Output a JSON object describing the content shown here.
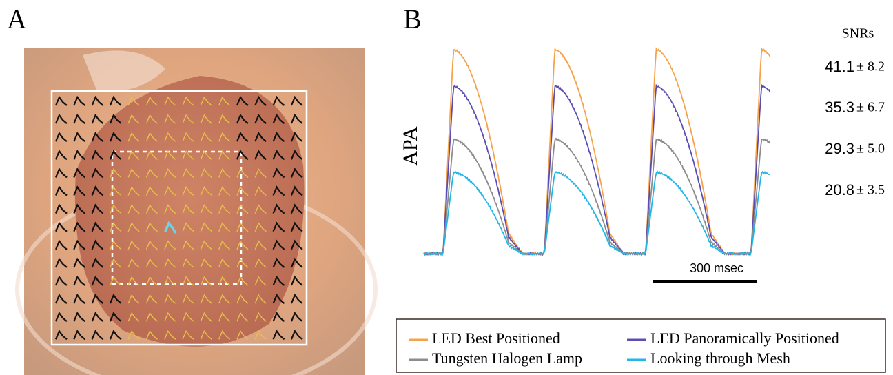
{
  "panel_a": {
    "label": "A"
  },
  "panel_b": {
    "label": "B",
    "y_label": "APA",
    "snr_title": "SNRs",
    "scale_bar": "300 msec",
    "traces": [
      {
        "name": "LED Best Positioned",
        "color": "#f6a24c",
        "snr_mean": "41.1",
        "snr_spread": "± 8.2"
      },
      {
        "name": "LED Panoramically Positioned",
        "color": "#5a4db3",
        "snr_mean": "35.3",
        "snr_spread": "± 6.7"
      },
      {
        "name": "Tungsten Halogen Lamp",
        "color": "#8c8c8c",
        "snr_mean": "29.3",
        "snr_spread": "± 5.0"
      },
      {
        "name": "Looking through Mesh",
        "color": "#22b5e8",
        "snr_mean": "20.8",
        "snr_spread": "± 3.5"
      }
    ]
  }
}
